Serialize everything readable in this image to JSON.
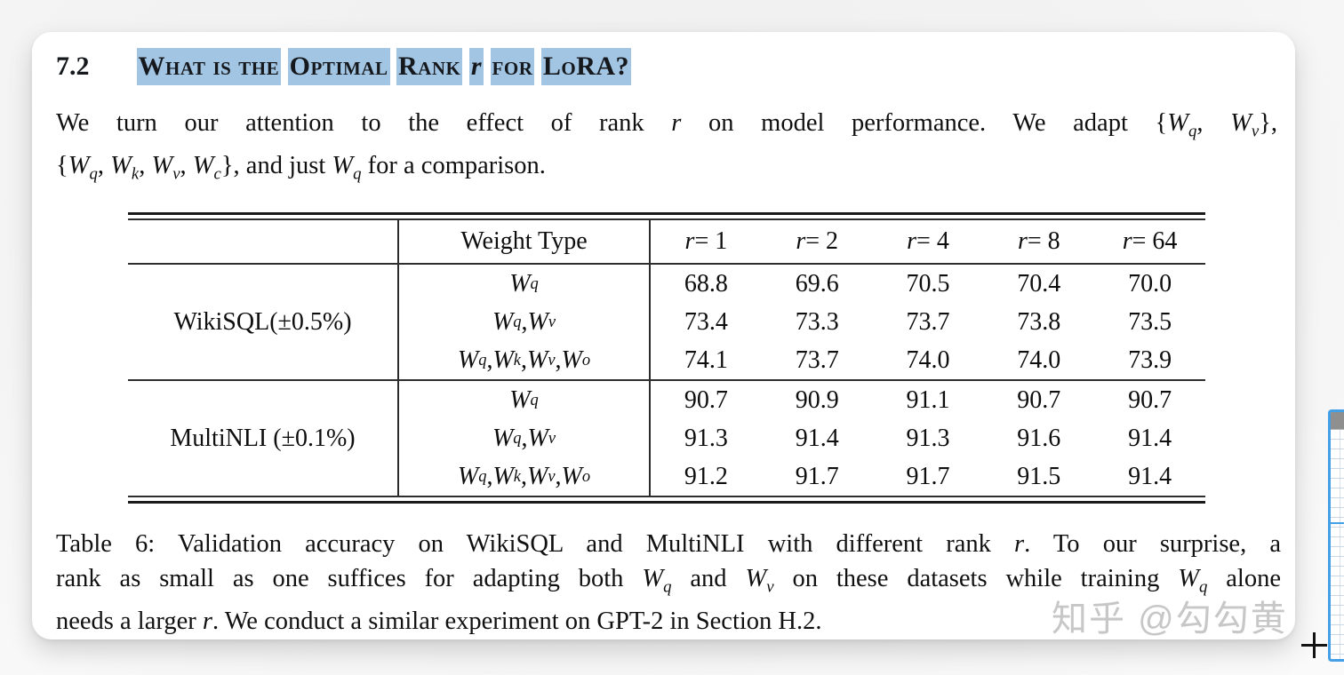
{
  "colors": {
    "highlight": "#a2c5e3",
    "watermark": "#c7c7c7",
    "grid_blue": "#43a0e6"
  },
  "heading": {
    "number": "7.2",
    "title_segments": [
      "What is the",
      "Optimal",
      "Rank",
      "$r$",
      "for",
      "LoRA?"
    ]
  },
  "paragraph": {
    "lines": [
      {
        "text": "We turn our attention to the effect of rank $r$ on model performance. We adapt {$W_q$, $W_v$},",
        "justify_last": true
      },
      {
        "text": "{$W_q$, $W_k$, $W_v$, $W_c$}, and just $W_q$ for a comparison.",
        "justify_last": false
      }
    ]
  },
  "table": {
    "header": {
      "row_label": "",
      "weight_type": "Weight Type",
      "rank_cols": [
        "$r$ = 1",
        "$r$ = 2",
        "$r$ = 4",
        "$r$ = 8",
        "$r$ = 64"
      ]
    },
    "sections": [
      {
        "label": "WikiSQL(±0.5%)",
        "rows": [
          {
            "weights": "$W_q$",
            "values": [
              "68.8",
              "69.6",
              "70.5",
              "70.4",
              "70.0"
            ]
          },
          {
            "weights": "$W_q$, $W_v$",
            "values": [
              "73.4",
              "73.3",
              "73.7",
              "73.8",
              "73.5"
            ]
          },
          {
            "weights": "$W_q$, $W_k$, $W_v$, $W_o$",
            "values": [
              "74.1",
              "73.7",
              "74.0",
              "74.0",
              "73.9"
            ]
          }
        ]
      },
      {
        "label": "MultiNLI (±0.1%)",
        "rows": [
          {
            "weights": "$W_q$",
            "values": [
              "90.7",
              "90.9",
              "91.1",
              "90.7",
              "90.7"
            ]
          },
          {
            "weights": "$W_q$, $W_v$",
            "values": [
              "91.3",
              "91.4",
              "91.3",
              "91.6",
              "91.4"
            ]
          },
          {
            "weights": "$W_q$, $W_k$, $W_v$, $W_o$",
            "values": [
              "91.2",
              "91.7",
              "91.7",
              "91.5",
              "91.4"
            ]
          }
        ]
      }
    ]
  },
  "caption": {
    "lines": [
      {
        "text": "Table 6: Validation accuracy on WikiSQL and MultiNLI with different rank $r$. To our surprise, a",
        "justify_last": true
      },
      {
        "text": "rank as small as one suffices for adapting both $W_q$ and $W_v$ on these datasets while training $W_q$ alone",
        "justify_last": true
      },
      {
        "text": "needs a larger $r$. We conduct a similar experiment on GPT-2 in Section H.2.",
        "justify_last": false
      }
    ]
  },
  "watermark": "知乎 @勾勾黄",
  "cursor_glyph": "+"
}
